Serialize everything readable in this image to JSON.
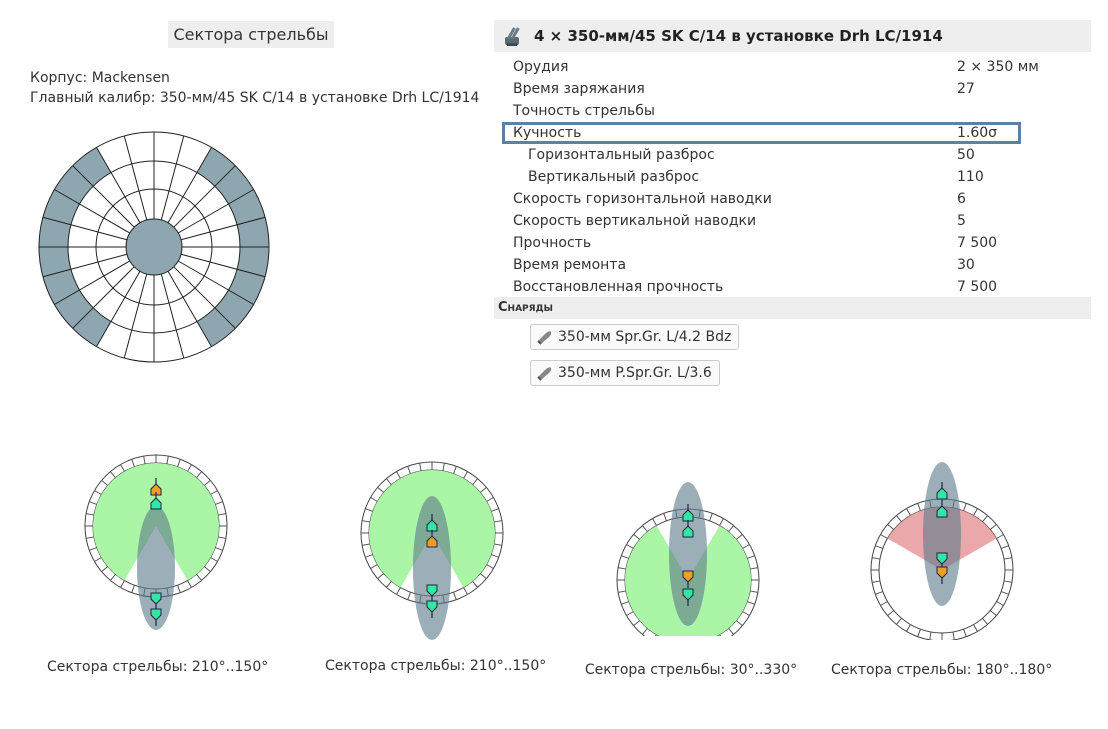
{
  "page": {
    "title": "Сектора стрельбы",
    "hull_line": "Корпус: Mackensen",
    "main_battery_line": "Главный калибр: 350-мм/45 SK C/14 в установке Drh LC/1914"
  },
  "gun": {
    "title": "4 × 350-мм/45 SK C/14 в установке Drh LC/1914",
    "icon": "gun-turret-icon",
    "stats": [
      {
        "label": "Орудия",
        "value": "2 × 350 мм",
        "sub": false
      },
      {
        "label": "Время заряжания",
        "value": "27",
        "sub": false
      },
      {
        "label": "Точность стрельбы",
        "value": "",
        "sub": false
      },
      {
        "label": "Кучность",
        "value": "1.60σ",
        "sub": true,
        "highlight": true
      },
      {
        "label": "Горизонтальный разброс",
        "value": "50",
        "sub": true
      },
      {
        "label": "Вертикальный разброс",
        "value": "110",
        "sub": true
      },
      {
        "label": "Скорость горизонтальной наводки",
        "value": "6",
        "sub": false
      },
      {
        "label": "Скорость вертикальной наводки",
        "value": "5",
        "sub": false
      },
      {
        "label": "Прочность",
        "value": "7 500",
        "sub": false
      },
      {
        "label": "Время ремонта",
        "value": "30",
        "sub": false
      },
      {
        "label": "Восстановленная прочность",
        "value": "7 500",
        "sub": false
      }
    ]
  },
  "shells": {
    "header": "Снаряды",
    "items": [
      {
        "label": "350-мм Spr.Gr. L/4.2 Bdz",
        "icon": "shell-icon"
      },
      {
        "label": "350-мм P.Spr.Gr. L/3.6",
        "icon": "shell-icon"
      }
    ]
  },
  "turret_arcs": [
    {
      "caption": "Сектора стрельбы: 210°..150°",
      "start": 210,
      "end": 150
    },
    {
      "caption": "Сектора стрельбы: 210°..150°",
      "start": 210,
      "end": 150
    },
    {
      "caption": "Сектора стрельбы: 30°..330°",
      "start": 30,
      "end": 330
    },
    {
      "caption": "Сектора стрельбы: 180°..180°",
      "start": 180,
      "end": 180
    }
  ],
  "colors": {
    "arc_fill": "#aaf5a6",
    "dead_zone": "#e8999c",
    "ship_fill": "#607d8b",
    "polar_sector": "#8ea6b0",
    "highlight_border": "#5f7fa3",
    "turret_fill": "#2ee8a4",
    "turret_active": "#f0a020"
  }
}
